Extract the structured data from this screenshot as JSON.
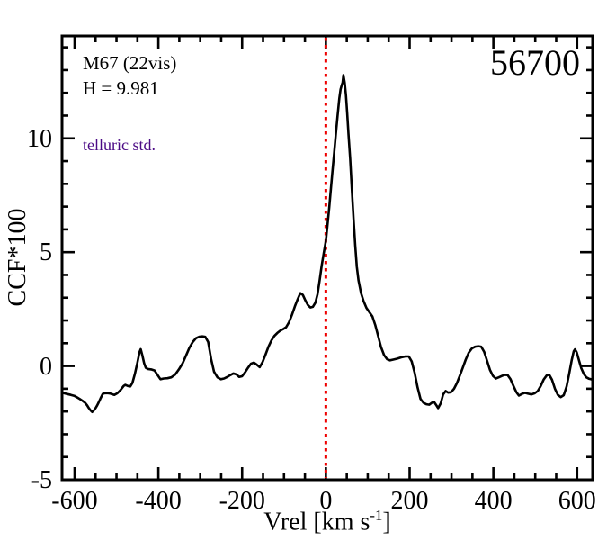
{
  "figure": {
    "background": "#ffffff"
  },
  "chart_data": {
    "type": "line",
    "title": "",
    "ylabel": "CCF*100",
    "xlabel": {
      "prefix": "Vrel [km s",
      "sup": "-1",
      "suffix": "]"
    },
    "xlim": [
      -630,
      637
    ],
    "ylim": [
      -5,
      14.5
    ],
    "x_major_ticks": [
      -600,
      -400,
      -200,
      0,
      200,
      400,
      600
    ],
    "x_minor_step": 50,
    "y_major_ticks": [
      -5,
      0,
      5,
      10
    ],
    "y_minor_step": 1,
    "grid": false,
    "legend": "none",
    "frame_color": "#000000",
    "annotations": {
      "target": "M67 (22vis)",
      "h_mag": "H = 9.981",
      "note": "telluric std.",
      "note_color": "#4B0A85",
      "obs_id": "56700"
    },
    "vline": {
      "x": 0,
      "color": "#EE0000",
      "style": "dotted"
    },
    "series": [
      {
        "name": "CCF",
        "color": "#000000",
        "points": [
          [
            -626,
            -1.19
          ],
          [
            -618,
            -1.23
          ],
          [
            -609,
            -1.27
          ],
          [
            -601,
            -1.31
          ],
          [
            -594,
            -1.38
          ],
          [
            -588,
            -1.45
          ],
          [
            -581,
            -1.53
          ],
          [
            -575,
            -1.62
          ],
          [
            -570,
            -1.73
          ],
          [
            -566,
            -1.85
          ],
          [
            -562,
            -1.95
          ],
          [
            -558,
            -2.02
          ],
          [
            -554,
            -1.95
          ],
          [
            -550,
            -1.85
          ],
          [
            -546,
            -1.73
          ],
          [
            -543,
            -1.62
          ],
          [
            -538,
            -1.42
          ],
          [
            -533,
            -1.23
          ],
          [
            -529,
            -1.2
          ],
          [
            -522,
            -1.19
          ],
          [
            -515,
            -1.21
          ],
          [
            -511,
            -1.24
          ],
          [
            -505,
            -1.27
          ],
          [
            -498,
            -1.2
          ],
          [
            -490,
            -1.05
          ],
          [
            -483,
            -0.88
          ],
          [
            -479,
            -0.83
          ],
          [
            -473,
            -0.88
          ],
          [
            -467,
            -0.9
          ],
          [
            -462,
            -0.75
          ],
          [
            -456,
            -0.35
          ],
          [
            -450,
            0.15
          ],
          [
            -445,
            0.6
          ],
          [
            -442,
            0.74
          ],
          [
            -438,
            0.45
          ],
          [
            -434,
            0.12
          ],
          [
            -430,
            -0.08
          ],
          [
            -425,
            -0.13
          ],
          [
            -417,
            -0.15
          ],
          [
            -409,
            -0.2
          ],
          [
            -401,
            -0.42
          ],
          [
            -395,
            -0.58
          ],
          [
            -387,
            -0.55
          ],
          [
            -378,
            -0.54
          ],
          [
            -369,
            -0.5
          ],
          [
            -360,
            -0.38
          ],
          [
            -351,
            -0.15
          ],
          [
            -342,
            0.12
          ],
          [
            -334,
            0.45
          ],
          [
            -326,
            0.8
          ],
          [
            -318,
            1.05
          ],
          [
            -310,
            1.22
          ],
          [
            -302,
            1.29
          ],
          [
            -295,
            1.3
          ],
          [
            -288,
            1.28
          ],
          [
            -281,
            1.05
          ],
          [
            -274,
            0.3
          ],
          [
            -267,
            -0.25
          ],
          [
            -259,
            -0.5
          ],
          [
            -251,
            -0.58
          ],
          [
            -243,
            -0.55
          ],
          [
            -235,
            -0.48
          ],
          [
            -228,
            -0.4
          ],
          [
            -221,
            -0.33
          ],
          [
            -214,
            -0.37
          ],
          [
            -207,
            -0.48
          ],
          [
            -200,
            -0.45
          ],
          [
            -193,
            -0.28
          ],
          [
            -186,
            -0.08
          ],
          [
            -179,
            0.1
          ],
          [
            -172,
            0.15
          ],
          [
            -165,
            0.06
          ],
          [
            -158,
            -0.05
          ],
          [
            -151,
            0.18
          ],
          [
            -144,
            0.5
          ],
          [
            -137,
            0.85
          ],
          [
            -130,
            1.12
          ],
          [
            -123,
            1.32
          ],
          [
            -116,
            1.45
          ],
          [
            -109,
            1.55
          ],
          [
            -102,
            1.62
          ],
          [
            -95,
            1.7
          ],
          [
            -88,
            1.92
          ],
          [
            -81,
            2.25
          ],
          [
            -74,
            2.62
          ],
          [
            -67,
            2.95
          ],
          [
            -61,
            3.2
          ],
          [
            -55,
            3.12
          ],
          [
            -49,
            2.88
          ],
          [
            -43,
            2.68
          ],
          [
            -37,
            2.57
          ],
          [
            -31,
            2.6
          ],
          [
            -25,
            2.78
          ],
          [
            -20,
            3.15
          ],
          [
            -15,
            3.75
          ],
          [
            -10,
            4.4
          ],
          [
            -5,
            4.95
          ],
          [
            0,
            5.5
          ],
          [
            4,
            6.2
          ],
          [
            8,
            6.95
          ],
          [
            12,
            7.8
          ],
          [
            16,
            8.6
          ],
          [
            20,
            9.4
          ],
          [
            24,
            10.2
          ],
          [
            28,
            11.0
          ],
          [
            32,
            11.75
          ],
          [
            35,
            12.15
          ],
          [
            38,
            12.35
          ],
          [
            40,
            12.45
          ],
          [
            42,
            12.78
          ],
          [
            45,
            12.45
          ],
          [
            48,
            11.9
          ],
          [
            51,
            11.1
          ],
          [
            54,
            10.2
          ],
          [
            58,
            9.1
          ],
          [
            62,
            7.8
          ],
          [
            66,
            6.5
          ],
          [
            70,
            5.3
          ],
          [
            74,
            4.35
          ],
          [
            78,
            3.75
          ],
          [
            84,
            3.2
          ],
          [
            90,
            2.85
          ],
          [
            97,
            2.55
          ],
          [
            104,
            2.36
          ],
          [
            111,
            2.18
          ],
          [
            118,
            1.8
          ],
          [
            125,
            1.3
          ],
          [
            132,
            0.82
          ],
          [
            139,
            0.48
          ],
          [
            146,
            0.3
          ],
          [
            153,
            0.25
          ],
          [
            161,
            0.28
          ],
          [
            170,
            0.32
          ],
          [
            180,
            0.38
          ],
          [
            190,
            0.42
          ],
          [
            198,
            0.42
          ],
          [
            205,
            0.2
          ],
          [
            212,
            -0.3
          ],
          [
            219,
            -0.95
          ],
          [
            226,
            -1.45
          ],
          [
            233,
            -1.62
          ],
          [
            240,
            -1.68
          ],
          [
            247,
            -1.7
          ],
          [
            253,
            -1.62
          ],
          [
            258,
            -1.57
          ],
          [
            263,
            -1.7
          ],
          [
            268,
            -1.85
          ],
          [
            274,
            -1.65
          ],
          [
            280,
            -1.25
          ],
          [
            286,
            -1.1
          ],
          [
            292,
            -1.17
          ],
          [
            299,
            -1.15
          ],
          [
            306,
            -1.0
          ],
          [
            313,
            -0.75
          ],
          [
            320,
            -0.42
          ],
          [
            327,
            -0.08
          ],
          [
            334,
            0.28
          ],
          [
            341,
            0.58
          ],
          [
            349,
            0.78
          ],
          [
            357,
            0.85
          ],
          [
            364,
            0.87
          ],
          [
            371,
            0.85
          ],
          [
            378,
            0.62
          ],
          [
            385,
            0.22
          ],
          [
            392,
            -0.18
          ],
          [
            399,
            -0.44
          ],
          [
            406,
            -0.55
          ],
          [
            413,
            -0.5
          ],
          [
            420,
            -0.44
          ],
          [
            427,
            -0.39
          ],
          [
            434,
            -0.4
          ],
          [
            441,
            -0.58
          ],
          [
            448,
            -0.88
          ],
          [
            455,
            -1.15
          ],
          [
            461,
            -1.3
          ],
          [
            468,
            -1.23
          ],
          [
            475,
            -1.18
          ],
          [
            483,
            -1.22
          ],
          [
            491,
            -1.25
          ],
          [
            499,
            -1.2
          ],
          [
            506,
            -1.1
          ],
          [
            513,
            -0.88
          ],
          [
            520,
            -0.6
          ],
          [
            527,
            -0.42
          ],
          [
            533,
            -0.38
          ],
          [
            540,
            -0.6
          ],
          [
            547,
            -1.0
          ],
          [
            554,
            -1.27
          ],
          [
            561,
            -1.37
          ],
          [
            568,
            -1.28
          ],
          [
            575,
            -0.9
          ],
          [
            581,
            -0.35
          ],
          [
            587,
            0.25
          ],
          [
            592,
            0.65
          ],
          [
            595,
            0.73
          ],
          [
            599,
            0.6
          ],
          [
            604,
            0.28
          ],
          [
            610,
            -0.1
          ],
          [
            616,
            -0.35
          ],
          [
            622,
            -0.5
          ],
          [
            628,
            -0.56
          ],
          [
            633,
            -0.58
          ],
          [
            636,
            -0.6
          ]
        ]
      }
    ]
  }
}
